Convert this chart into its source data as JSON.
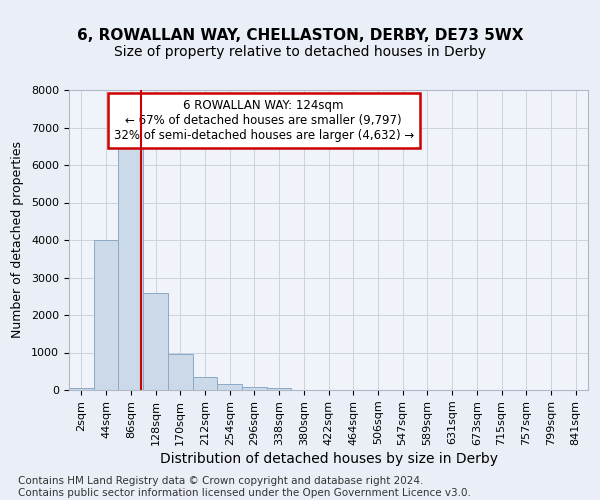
{
  "title1": "6, ROWALLAN WAY, CHELLASTON, DERBY, DE73 5WX",
  "title2": "Size of property relative to detached houses in Derby",
  "xlabel": "Distribution of detached houses by size in Derby",
  "ylabel": "Number of detached properties",
  "footnote": "Contains HM Land Registry data © Crown copyright and database right 2024.\nContains public sector information licensed under the Open Government Licence v3.0.",
  "bar_labels": [
    "2sqm",
    "44sqm",
    "86sqm",
    "128sqm",
    "170sqm",
    "212sqm",
    "254sqm",
    "296sqm",
    "338sqm",
    "380sqm",
    "422sqm",
    "464sqm",
    "506sqm",
    "547sqm",
    "589sqm",
    "631sqm",
    "673sqm",
    "715sqm",
    "757sqm",
    "799sqm",
    "841sqm"
  ],
  "bar_values": [
    60,
    4000,
    6600,
    2600,
    960,
    340,
    155,
    80,
    55,
    0,
    0,
    0,
    0,
    0,
    0,
    0,
    0,
    0,
    0,
    0,
    0
  ],
  "bar_color": "#ccd9e8",
  "bar_edge_color": "#8aaac8",
  "ylim": [
    0,
    8000
  ],
  "yticks": [
    0,
    1000,
    2000,
    3000,
    4000,
    5000,
    6000,
    7000,
    8000
  ],
  "vline_color": "#cc0000",
  "vline_x": 2.45,
  "annotation_text": "6 ROWALLAN WAY: 124sqm\n← 67% of detached houses are smaller (9,797)\n32% of semi-detached houses are larger (4,632) →",
  "annotation_box_color": "#cc0000",
  "bg_color": "#eaeff7",
  "plot_bg": "#f0f4fa",
  "grid_color": "#c5cdd8",
  "title1_fontsize": 11,
  "title2_fontsize": 10,
  "xlabel_fontsize": 10,
  "ylabel_fontsize": 9,
  "tick_fontsize": 8,
  "footnote_fontsize": 7.5,
  "annot_fontsize": 8.5
}
